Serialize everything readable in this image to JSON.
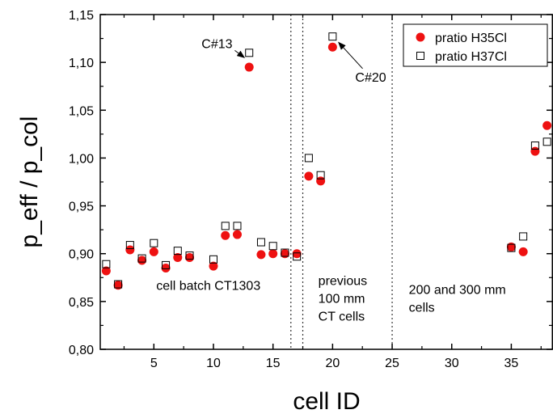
{
  "chart_data": {
    "type": "scatter",
    "xlabel": "cell ID",
    "ylabel": "p_eff / p_col",
    "xlim": [
      0.5,
      38.5
    ],
    "ylim": [
      0.8,
      1.15
    ],
    "grid": false,
    "legend_position": "top-right",
    "x_ticks": [
      5,
      10,
      15,
      20,
      25,
      30,
      35
    ],
    "x_tick_labels": [
      "5",
      "10",
      "15",
      "20",
      "25",
      "30",
      "35"
    ],
    "y_ticks": [
      0.8,
      0.85,
      0.9,
      0.95,
      1.0,
      1.05,
      1.1,
      1.15
    ],
    "y_tick_labels": [
      "0,80",
      "0,85",
      "0,90",
      "0,95",
      "1,00",
      "1,05",
      "1,10",
      "1,15"
    ],
    "series": [
      {
        "name": "pratio H35Cl",
        "marker": "filled-circle",
        "color": "#ee1111",
        "x": [
          1,
          2,
          3,
          4,
          5,
          6,
          7,
          8,
          10,
          11,
          12,
          13,
          14,
          15,
          16,
          17,
          18,
          19,
          20,
          35,
          36,
          37,
          38
        ],
        "y": [
          0.882,
          0.867,
          0.904,
          0.893,
          0.902,
          0.885,
          0.896,
          0.896,
          0.887,
          0.919,
          0.92,
          1.095,
          0.899,
          0.9,
          0.9,
          0.9,
          0.981,
          0.976,
          1.116,
          0.907,
          0.902,
          1.007,
          1.034
        ]
      },
      {
        "name": "pratio H37Cl",
        "marker": "open-square",
        "color": "#000000",
        "x": [
          1,
          2,
          3,
          4,
          5,
          6,
          7,
          8,
          10,
          11,
          12,
          13,
          14,
          15,
          16,
          17,
          18,
          19,
          20,
          35,
          36,
          37,
          38
        ],
        "y": [
          0.889,
          0.868,
          0.909,
          0.895,
          0.911,
          0.888,
          0.903,
          0.898,
          0.894,
          0.929,
          0.929,
          1.11,
          0.912,
          0.908,
          0.901,
          0.897,
          1.0,
          0.982,
          1.127,
          0.906,
          0.918,
          1.013,
          1.017
        ]
      }
    ],
    "divider_lines_x": [
      16.5,
      17.5,
      25
    ],
    "annotations": [
      {
        "name": "c13",
        "text": "C#13",
        "text_x": 10.3,
        "text_y": 1.115,
        "target_x": 12.6,
        "target_y": 1.105
      },
      {
        "name": "c20",
        "text": "C#20",
        "text_x": 23.2,
        "text_y": 1.08,
        "target_x": 20.5,
        "target_y": 1.121
      }
    ],
    "region_labels": [
      {
        "name": "batch",
        "lines": [
          "cell batch CT1303"
        ],
        "x": 5.2,
        "y": 0.862
      },
      {
        "name": "previous",
        "lines": [
          "previous",
          "100 mm",
          "CT cells"
        ],
        "x": 18.8,
        "y": 0.867
      },
      {
        "name": "large",
        "lines": [
          "200 and 300 mm",
          "cells"
        ],
        "x": 26.4,
        "y": 0.858
      }
    ]
  }
}
